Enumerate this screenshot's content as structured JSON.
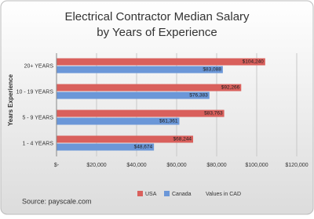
{
  "chart_data": {
    "type": "hbar",
    "title_lines": [
      "Electrical Contractor Median Salary",
      "by Years of Experience"
    ],
    "y_label": "Years Experience",
    "categories": [
      "20+ YEARS",
      "10 - 19 YEARS",
      "5 - 9 YEARS",
      "1 - 4 YEARS"
    ],
    "series": [
      {
        "name": "USA",
        "color": "#d9605c",
        "values": [
          104240,
          92266,
          83763,
          68244
        ],
        "value_labels": [
          "$104,240",
          "$92,266",
          "$83,763",
          "$68,244"
        ]
      },
      {
        "name": "Canada",
        "color": "#6b97d8",
        "values": [
          83088,
          76383,
          61361,
          48674
        ],
        "value_labels": [
          "$83,088",
          "$76,383",
          "$61,361",
          "$48,674"
        ]
      }
    ],
    "xlim": [
      0,
      120000
    ],
    "xticks": [
      {
        "value": 0,
        "label": "$-"
      },
      {
        "value": 20000,
        "label": "$20,000"
      },
      {
        "value": 40000,
        "label": "$40,000"
      },
      {
        "value": 60000,
        "label": "$60,000"
      },
      {
        "value": 80000,
        "label": "$80,000"
      },
      {
        "value": 100000,
        "label": "$100,000"
      },
      {
        "value": 120000,
        "label": "$120,000"
      }
    ],
    "grid": true,
    "source": "Source: payscale.com",
    "note": "Values in CAD"
  }
}
